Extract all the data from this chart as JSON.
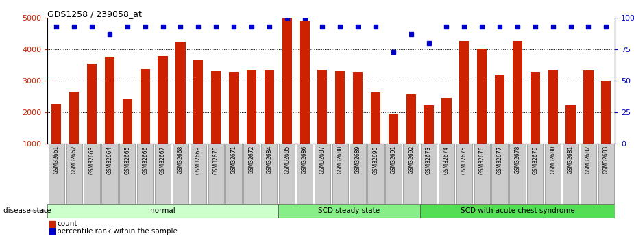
{
  "title": "GDS1258 / 239058_at",
  "samples": [
    "GSM32661",
    "GSM32662",
    "GSM32663",
    "GSM32664",
    "GSM32665",
    "GSM32666",
    "GSM32667",
    "GSM32668",
    "GSM32669",
    "GSM32670",
    "GSM32671",
    "GSM32672",
    "GSM32684",
    "GSM32685",
    "GSM32686",
    "GSM32687",
    "GSM32688",
    "GSM32689",
    "GSM32690",
    "GSM32691",
    "GSM32692",
    "GSM32673",
    "GSM32674",
    "GSM32675",
    "GSM32676",
    "GSM32677",
    "GSM32678",
    "GSM32679",
    "GSM32680",
    "GSM32681",
    "GSM32682",
    "GSM32683"
  ],
  "counts": [
    2270,
    2650,
    3550,
    3770,
    2450,
    3370,
    3790,
    4230,
    3650,
    3310,
    3290,
    3360,
    3330,
    4980,
    4920,
    3340,
    3310,
    3290,
    2640,
    1960,
    2560,
    2220,
    2460,
    4270,
    4020,
    3200,
    4270,
    3280,
    3350,
    2220,
    3330,
    3000
  ],
  "percentile_ranks": [
    93,
    93,
    93,
    87,
    93,
    93,
    93,
    93,
    93,
    93,
    93,
    93,
    93,
    100,
    100,
    93,
    93,
    93,
    93,
    73,
    87,
    80,
    93,
    93,
    93,
    93,
    93,
    93,
    93,
    93,
    93,
    93
  ],
  "groups": [
    {
      "label": "normal",
      "start": 0,
      "end": 13,
      "color": "#ccffcc"
    },
    {
      "label": "SCD steady state",
      "start": 13,
      "end": 21,
      "color": "#88ee88"
    },
    {
      "label": "SCD with acute chest syndrome",
      "start": 21,
      "end": 32,
      "color": "#55dd55"
    }
  ],
  "bar_color": "#cc2200",
  "dot_color": "#0000cc",
  "ylim_left": [
    1000,
    5000
  ],
  "ylim_right": [
    0,
    100
  ],
  "yticks_left": [
    1000,
    2000,
    3000,
    4000,
    5000
  ],
  "yticks_right": [
    0,
    25,
    50,
    75,
    100
  ],
  "bg_color": "#ffffff",
  "left_axis_color": "#cc2200",
  "right_axis_color": "#0000cc",
  "disease_state_label": "disease state",
  "legend_count_label": "count",
  "legend_pct_label": "percentile rank within the sample",
  "label_bg_color": "#cccccc",
  "label_edge_color": "#888888"
}
